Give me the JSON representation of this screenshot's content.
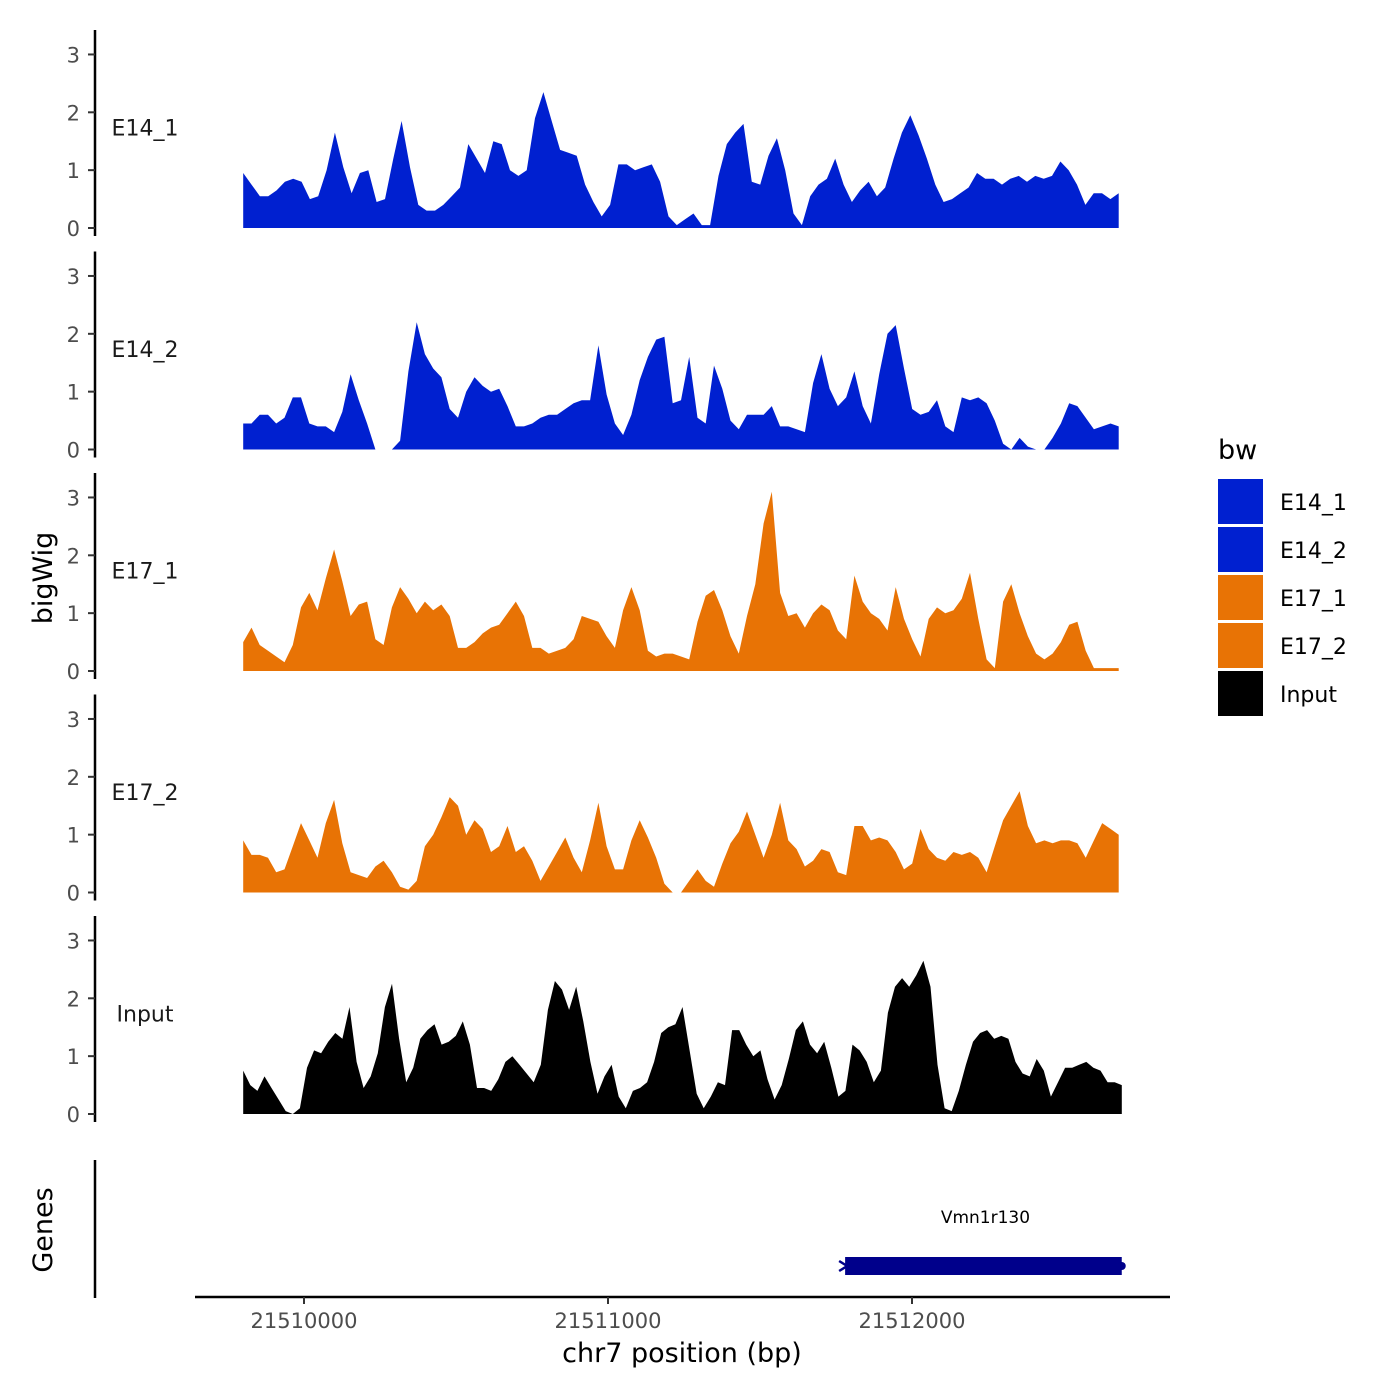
{
  "chart_data": {
    "type": "area",
    "ylabel": "bigWig",
    "xlabel": "chr7 position (bp)",
    "ylim": [
      0,
      3.25
    ],
    "y_ticks": [
      0,
      1,
      2,
      3
    ],
    "y_tick_labels": [
      "0",
      "1",
      "2",
      "3"
    ],
    "xlim": [
      21509550,
      21512850
    ],
    "x_ticks": [
      21510000,
      21511000,
      21512000
    ],
    "x_tick_labels": [
      "21510000",
      "21511000",
      "21512000"
    ],
    "legend": {
      "title": "bw",
      "position": "right",
      "items": [
        {
          "label": "E14_1",
          "color": "#0020D0"
        },
        {
          "label": "E14_2",
          "color": "#0020D0"
        },
        {
          "label": "E17_1",
          "color": "#E87305"
        },
        {
          "label": "E17_2",
          "color": "#E87305"
        },
        {
          "label": "Input",
          "color": "#000000"
        }
      ]
    },
    "series": [
      {
        "name": "E14_1",
        "color": "#0020D0",
        "x_start": 21509800,
        "x_end": 21512680,
        "values": [
          0.95,
          0.75,
          0.55,
          0.55,
          0.65,
          0.8,
          0.85,
          0.8,
          0.5,
          0.55,
          1.0,
          1.65,
          1.05,
          0.6,
          0.95,
          1.0,
          0.45,
          0.5,
          1.2,
          1.85,
          1.05,
          0.4,
          0.3,
          0.3,
          0.4,
          0.55,
          0.7,
          1.45,
          1.2,
          0.95,
          1.5,
          1.45,
          1.0,
          0.9,
          1.0,
          1.9,
          2.35,
          1.85,
          1.35,
          1.3,
          1.25,
          0.75,
          0.45,
          0.2,
          0.4,
          1.1,
          1.1,
          1.0,
          1.05,
          1.1,
          0.8,
          0.2,
          0.05,
          0.15,
          0.25,
          0.05,
          0.05,
          0.9,
          1.45,
          1.65,
          1.8,
          0.8,
          0.75,
          1.25,
          1.55,
          1.0,
          0.25,
          0.05,
          0.55,
          0.75,
          0.85,
          1.2,
          0.75,
          0.45,
          0.65,
          0.8,
          0.55,
          0.7,
          1.2,
          1.65,
          1.95,
          1.6,
          1.2,
          0.75,
          0.45,
          0.5,
          0.6,
          0.7,
          0.95,
          0.85,
          0.85,
          0.75,
          0.85,
          0.9,
          0.8,
          0.9,
          0.85,
          0.9,
          1.15,
          1.0,
          0.75,
          0.4,
          0.6,
          0.6,
          0.5,
          0.6
        ]
      },
      {
        "name": "E14_2",
        "color": "#0020D0",
        "x_start": 21509800,
        "x_end": 21512680,
        "values": [
          0.45,
          0.45,
          0.6,
          0.6,
          0.45,
          0.55,
          0.9,
          0.9,
          0.45,
          0.4,
          0.4,
          0.3,
          0.65,
          1.3,
          0.85,
          0.45,
          0.0,
          0.0,
          0.0,
          0.15,
          1.35,
          2.2,
          1.65,
          1.4,
          1.25,
          0.7,
          0.55,
          1.0,
          1.25,
          1.1,
          1.0,
          1.05,
          0.75,
          0.4,
          0.4,
          0.45,
          0.55,
          0.6,
          0.6,
          0.7,
          0.8,
          0.85,
          0.85,
          1.8,
          0.95,
          0.45,
          0.25,
          0.6,
          1.2,
          1.6,
          1.9,
          1.95,
          0.8,
          0.85,
          1.6,
          0.55,
          0.45,
          1.45,
          1.05,
          0.5,
          0.35,
          0.6,
          0.6,
          0.6,
          0.75,
          0.4,
          0.4,
          0.35,
          0.3,
          1.15,
          1.65,
          1.05,
          0.75,
          0.9,
          1.35,
          0.75,
          0.45,
          1.3,
          2.0,
          2.15,
          1.4,
          0.7,
          0.6,
          0.65,
          0.85,
          0.4,
          0.3,
          0.9,
          0.85,
          0.9,
          0.8,
          0.5,
          0.1,
          0.0,
          0.2,
          0.05,
          0.0,
          0.0,
          0.2,
          0.45,
          0.8,
          0.75,
          0.55,
          0.35,
          0.4,
          0.45,
          0.4
        ]
      },
      {
        "name": "E17_1",
        "color": "#E87305",
        "x_start": 21509800,
        "x_end": 21512680,
        "values": [
          0.5,
          0.75,
          0.45,
          0.35,
          0.25,
          0.15,
          0.45,
          1.1,
          1.35,
          1.05,
          1.6,
          2.1,
          1.55,
          0.95,
          1.15,
          1.2,
          0.55,
          0.45,
          1.1,
          1.45,
          1.25,
          1.0,
          1.2,
          1.05,
          1.15,
          0.95,
          0.4,
          0.4,
          0.5,
          0.65,
          0.75,
          0.8,
          1.0,
          1.2,
          0.95,
          0.4,
          0.4,
          0.3,
          0.35,
          0.4,
          0.55,
          0.95,
          0.9,
          0.85,
          0.6,
          0.4,
          1.05,
          1.45,
          1.05,
          0.35,
          0.25,
          0.3,
          0.3,
          0.25,
          0.2,
          0.85,
          1.3,
          1.4,
          1.05,
          0.6,
          0.3,
          0.95,
          1.5,
          2.55,
          3.1,
          1.35,
          0.95,
          1.0,
          0.75,
          1.0,
          1.15,
          1.05,
          0.7,
          0.55,
          1.65,
          1.2,
          1.0,
          0.9,
          0.7,
          1.45,
          0.9,
          0.55,
          0.25,
          0.9,
          1.1,
          1.0,
          1.05,
          1.25,
          1.7,
          0.9,
          0.2,
          0.05,
          1.2,
          1.5,
          1.0,
          0.6,
          0.3,
          0.2,
          0.3,
          0.5,
          0.8,
          0.85,
          0.35,
          0.05,
          0.05,
          0.05,
          0.05
        ]
      },
      {
        "name": "E17_2",
        "color": "#E87305",
        "x_start": 21509800,
        "x_end": 21512680,
        "values": [
          0.9,
          0.65,
          0.65,
          0.6,
          0.35,
          0.4,
          0.8,
          1.2,
          0.9,
          0.6,
          1.2,
          1.6,
          0.85,
          0.35,
          0.3,
          0.25,
          0.45,
          0.55,
          0.35,
          0.1,
          0.05,
          0.2,
          0.8,
          1.0,
          1.3,
          1.65,
          1.5,
          1.0,
          1.25,
          1.1,
          0.7,
          0.8,
          1.15,
          0.7,
          0.8,
          0.55,
          0.2,
          0.45,
          0.7,
          0.95,
          0.6,
          0.35,
          0.9,
          1.55,
          0.8,
          0.4,
          0.4,
          0.9,
          1.25,
          0.95,
          0.6,
          0.15,
          0.0,
          0.0,
          0.2,
          0.4,
          0.2,
          0.1,
          0.5,
          0.85,
          1.05,
          1.4,
          1.0,
          0.6,
          1.0,
          1.55,
          0.9,
          0.75,
          0.45,
          0.55,
          0.75,
          0.7,
          0.35,
          0.3,
          1.15,
          1.15,
          0.9,
          0.95,
          0.9,
          0.7,
          0.4,
          0.5,
          1.1,
          0.75,
          0.6,
          0.55,
          0.7,
          0.65,
          0.7,
          0.6,
          0.35,
          0.8,
          1.25,
          1.5,
          1.75,
          1.15,
          0.85,
          0.9,
          0.85,
          0.9,
          0.9,
          0.85,
          0.6,
          0.9,
          1.2,
          1.1,
          1.0
        ]
      },
      {
        "name": "Input",
        "color": "#000000",
        "x_start": 21509800,
        "x_end": 21512690,
        "values": [
          0.75,
          0.5,
          0.4,
          0.65,
          0.45,
          0.25,
          0.05,
          0.0,
          0.1,
          0.8,
          1.1,
          1.05,
          1.25,
          1.4,
          1.3,
          1.85,
          0.9,
          0.45,
          0.65,
          1.05,
          1.85,
          2.25,
          1.3,
          0.55,
          0.8,
          1.3,
          1.45,
          1.55,
          1.2,
          1.25,
          1.35,
          1.6,
          1.2,
          0.45,
          0.45,
          0.4,
          0.6,
          0.9,
          1.0,
          0.85,
          0.7,
          0.55,
          0.85,
          1.8,
          2.3,
          2.15,
          1.8,
          2.2,
          1.6,
          0.9,
          0.35,
          0.65,
          0.85,
          0.3,
          0.1,
          0.4,
          0.45,
          0.55,
          0.9,
          1.4,
          1.5,
          1.55,
          1.85,
          1.1,
          0.35,
          0.1,
          0.3,
          0.55,
          0.5,
          1.45,
          1.45,
          1.2,
          1.0,
          1.1,
          0.6,
          0.25,
          0.5,
          0.95,
          1.45,
          1.6,
          1.2,
          1.05,
          1.25,
          0.8,
          0.3,
          0.4,
          1.2,
          1.1,
          0.9,
          0.55,
          0.75,
          1.75,
          2.2,
          2.35,
          2.2,
          2.4,
          2.65,
          2.2,
          0.85,
          0.1,
          0.05,
          0.4,
          0.85,
          1.25,
          1.4,
          1.45,
          1.3,
          1.35,
          1.3,
          0.9,
          0.7,
          0.65,
          0.95,
          0.75,
          0.3,
          0.55,
          0.8,
          0.8,
          0.85,
          0.9,
          0.8,
          0.75,
          0.55,
          0.55,
          0.5
        ]
      }
    ],
    "genes": {
      "track_label": "Genes",
      "items": [
        {
          "name": "Vmn1r130",
          "start": 21511780,
          "end": 21512690,
          "strand": "-",
          "color": "#00008B"
        }
      ]
    }
  }
}
